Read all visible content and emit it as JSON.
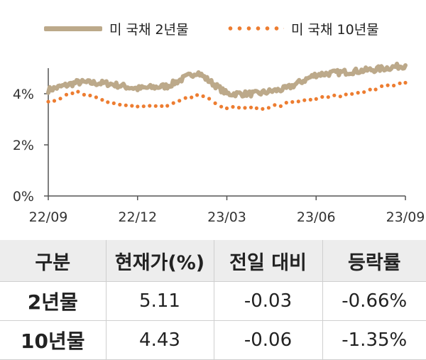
{
  "chart_data": {
    "type": "line",
    "x_ticks": [
      "22/09",
      "22/12",
      "23/03",
      "23/06",
      "23/09"
    ],
    "y_ticks": [
      "0%",
      "2%",
      "4%"
    ],
    "ylim": [
      0,
      5
    ],
    "grid": false,
    "legend_position": "top",
    "series": [
      {
        "name": "미 국채 2년물",
        "style": "solid",
        "color": "#bca98a",
        "points": [
          [
            "22/09",
            4.15
          ],
          [
            "22/10",
            4.45
          ],
          [
            "22/11",
            4.4
          ],
          [
            "22/12",
            4.2
          ],
          [
            "23/01",
            4.3
          ],
          [
            "23/02",
            4.85
          ],
          [
            "23/03",
            4.0
          ],
          [
            "23/04",
            4.0
          ],
          [
            "23/05",
            4.2
          ],
          [
            "23/06",
            4.75
          ],
          [
            "23/07",
            4.85
          ],
          [
            "23/08",
            4.95
          ],
          [
            "23/09",
            5.11
          ]
        ]
      },
      {
        "name": "미 국채 10년물",
        "style": "dotted",
        "color": "#ed7d31",
        "points": [
          [
            "22/09",
            3.7
          ],
          [
            "22/10",
            4.05
          ],
          [
            "22/11",
            3.65
          ],
          [
            "22/12",
            3.5
          ],
          [
            "23/01",
            3.5
          ],
          [
            "23/02",
            3.95
          ],
          [
            "23/03",
            3.45
          ],
          [
            "23/04",
            3.4
          ],
          [
            "23/05",
            3.6
          ],
          [
            "23/06",
            3.8
          ],
          [
            "23/07",
            3.95
          ],
          [
            "23/08",
            4.2
          ],
          [
            "23/09",
            4.43
          ]
        ]
      }
    ]
  },
  "table": {
    "headers": [
      "구분",
      "현재가(%)",
      "전일 대비",
      "등락률"
    ],
    "rows": [
      [
        "2년물",
        "5.11",
        "-0.03",
        "-0.66%"
      ],
      [
        "10년물",
        "4.43",
        "-0.06",
        "-1.35%"
      ]
    ]
  }
}
